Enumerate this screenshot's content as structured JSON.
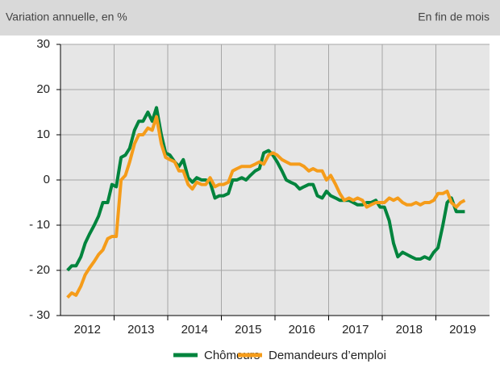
{
  "chart_data": {
    "type": "line",
    "subtitle": "Variation annuelle, en %",
    "note": "En fin de mois",
    "xlim": [
      2012,
      2020
    ],
    "xticks": [
      {
        "value": 2012.5,
        "label": "2012"
      },
      {
        "value": 2013.5,
        "label": "2013"
      },
      {
        "value": 2014.5,
        "label": "2014"
      },
      {
        "value": 2015.5,
        "label": "2015"
      },
      {
        "value": 2016.5,
        "label": "2016"
      },
      {
        "value": 2017.5,
        "label": "2017"
      },
      {
        "value": 2018.5,
        "label": "2018"
      },
      {
        "value": 2019.5,
        "label": "2019"
      }
    ],
    "xgrid": [
      2013,
      2014,
      2015,
      2016,
      2017,
      2018,
      2019
    ],
    "ylim": [
      -30,
      30
    ],
    "yticks": [
      {
        "value": -30,
        "label": "- 30"
      },
      {
        "value": -20,
        "label": "- 20"
      },
      {
        "value": -10,
        "label": "- 10"
      },
      0,
      10,
      20,
      30
    ],
    "grid": true,
    "x": [
      2012.13,
      2012.21,
      2012.29,
      2012.38,
      2012.46,
      2012.54,
      2012.63,
      2012.71,
      2012.79,
      2012.88,
      2012.96,
      2013.04,
      2013.13,
      2013.21,
      2013.29,
      2013.38,
      2013.46,
      2013.54,
      2013.63,
      2013.71,
      2013.79,
      2013.88,
      2013.96,
      2014.04,
      2014.13,
      2014.21,
      2014.29,
      2014.38,
      2014.46,
      2014.54,
      2014.63,
      2014.71,
      2014.79,
      2014.88,
      2014.96,
      2015.04,
      2015.13,
      2015.21,
      2015.29,
      2015.38,
      2015.46,
      2015.54,
      2015.63,
      2015.71,
      2015.79,
      2015.88,
      2015.96,
      2016.04,
      2016.13,
      2016.21,
      2016.29,
      2016.38,
      2016.46,
      2016.54,
      2016.63,
      2016.71,
      2016.79,
      2016.88,
      2016.96,
      2017.04,
      2017.13,
      2017.21,
      2017.29,
      2017.38,
      2017.46,
      2017.54,
      2017.63,
      2017.71,
      2017.79,
      2017.88,
      2017.96,
      2018.04,
      2018.13,
      2018.21,
      2018.29,
      2018.38,
      2018.46,
      2018.54,
      2018.63,
      2018.71,
      2018.79,
      2018.88,
      2018.96,
      2019.04,
      2019.13,
      2019.21,
      2019.29,
      2019.38,
      2019.46,
      2019.54
    ],
    "series": [
      {
        "name": "Chômeurs",
        "color": "#00843d",
        "values": [
          -20,
          -19,
          -19,
          -17,
          -14,
          -12,
          -10,
          -8,
          -5,
          -5,
          -1,
          -1.5,
          5,
          5.5,
          7,
          11,
          13,
          13,
          15,
          13,
          16,
          10,
          6,
          5.5,
          4,
          3,
          4.5,
          0.5,
          -0.5,
          0.5,
          0,
          0,
          -0.5,
          -4,
          -3.5,
          -3.5,
          -3,
          0,
          0,
          0.5,
          0,
          1,
          2,
          2.5,
          6,
          6.5,
          5.5,
          4,
          2,
          0,
          -0.5,
          -1,
          -2,
          -1.5,
          -1,
          -1,
          -3.5,
          -4,
          -2.5,
          -3.5,
          -4,
          -4.5,
          -4.5,
          -4.5,
          -5,
          -5.5,
          -5.5,
          -5,
          -5,
          -4.5,
          -6,
          -6,
          -9,
          -14,
          -17,
          -16,
          -16.5,
          -17,
          -17.5,
          -17.5,
          -17,
          -17.5,
          -16,
          -15,
          -10,
          -5,
          -4,
          -7,
          -7,
          -7
        ]
      },
      {
        "name": "Demandeurs d’emploi",
        "color": "#f59c1a",
        "values": [
          -26,
          -25,
          -25.5,
          -23.5,
          -21,
          -19.5,
          -18,
          -16.5,
          -15.5,
          -13,
          -12.5,
          -12.5,
          0,
          1,
          4,
          8,
          10,
          10,
          11.5,
          11,
          14,
          8,
          5,
          4.5,
          4,
          2,
          2,
          -1,
          -2,
          -0.5,
          -1,
          -1,
          0.5,
          -1.5,
          -1,
          -1,
          -0.5,
          2,
          2.5,
          3,
          3,
          3,
          3.5,
          4,
          3.5,
          5.5,
          6,
          5.5,
          4.5,
          4,
          3.5,
          3.5,
          3.5,
          3,
          2,
          2.5,
          2,
          2,
          0,
          1,
          -1,
          -3,
          -4.5,
          -4,
          -4.5,
          -4,
          -4.5,
          -6,
          -5.5,
          -5,
          -5,
          -5,
          -4,
          -4.5,
          -4,
          -5,
          -5.5,
          -5.5,
          -5,
          -5.5,
          -5,
          -5,
          -4.5,
          -3,
          -3,
          -2.5,
          -5,
          -6,
          -5,
          -4.5
        ]
      }
    ]
  }
}
